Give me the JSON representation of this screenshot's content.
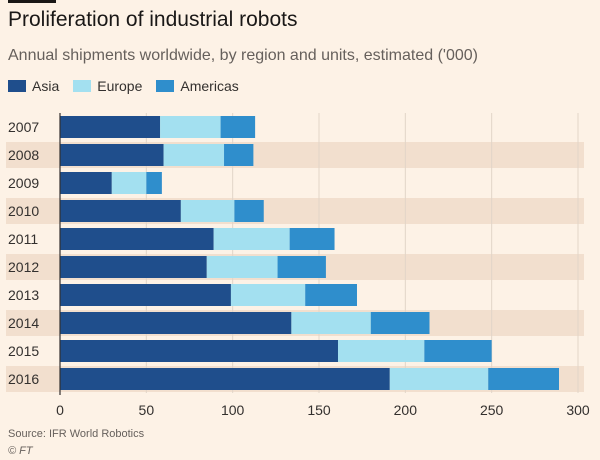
{
  "header": {
    "title": "Proliferation of industrial robots",
    "subtitle": "Annual shipments worldwide, by region and units, estimated ('000)"
  },
  "legend": [
    {
      "name": "Asia",
      "color": "#1f4e8c"
    },
    {
      "name": "Europe",
      "color": "#a3e0f0"
    },
    {
      "name": "Americas",
      "color": "#2f8ecc"
    }
  ],
  "colors": {
    "background": "#fdf2e6",
    "band": "#f2dfce",
    "axis": "#33302e"
  },
  "chart_data": {
    "type": "bar",
    "orientation": "horizontal",
    "stacked": true,
    "title": "Proliferation of industrial robots",
    "subtitle": "Annual shipments worldwide, by region and units, estimated ('000)",
    "categories": [
      "2007",
      "2008",
      "2009",
      "2010",
      "2011",
      "2012",
      "2013",
      "2014",
      "2015",
      "2016"
    ],
    "series": [
      {
        "name": "Asia",
        "values": [
          58,
          60,
          30,
          70,
          89,
          85,
          99,
          134,
          161,
          191
        ]
      },
      {
        "name": "Europe",
        "values": [
          35,
          35,
          20,
          31,
          44,
          41,
          43,
          46,
          50,
          57
        ]
      },
      {
        "name": "Americas",
        "values": [
          20,
          17,
          9,
          17,
          26,
          28,
          30,
          34,
          39,
          41
        ]
      }
    ],
    "xlim": [
      0,
      300
    ],
    "xticks": [
      0,
      50,
      100,
      150,
      200,
      250,
      300
    ],
    "xlabel": "",
    "ylabel": "",
    "grid": true,
    "legend_position": "top-left"
  },
  "footer": {
    "source": "Source: IFR World Robotics",
    "credit": "© FT"
  }
}
